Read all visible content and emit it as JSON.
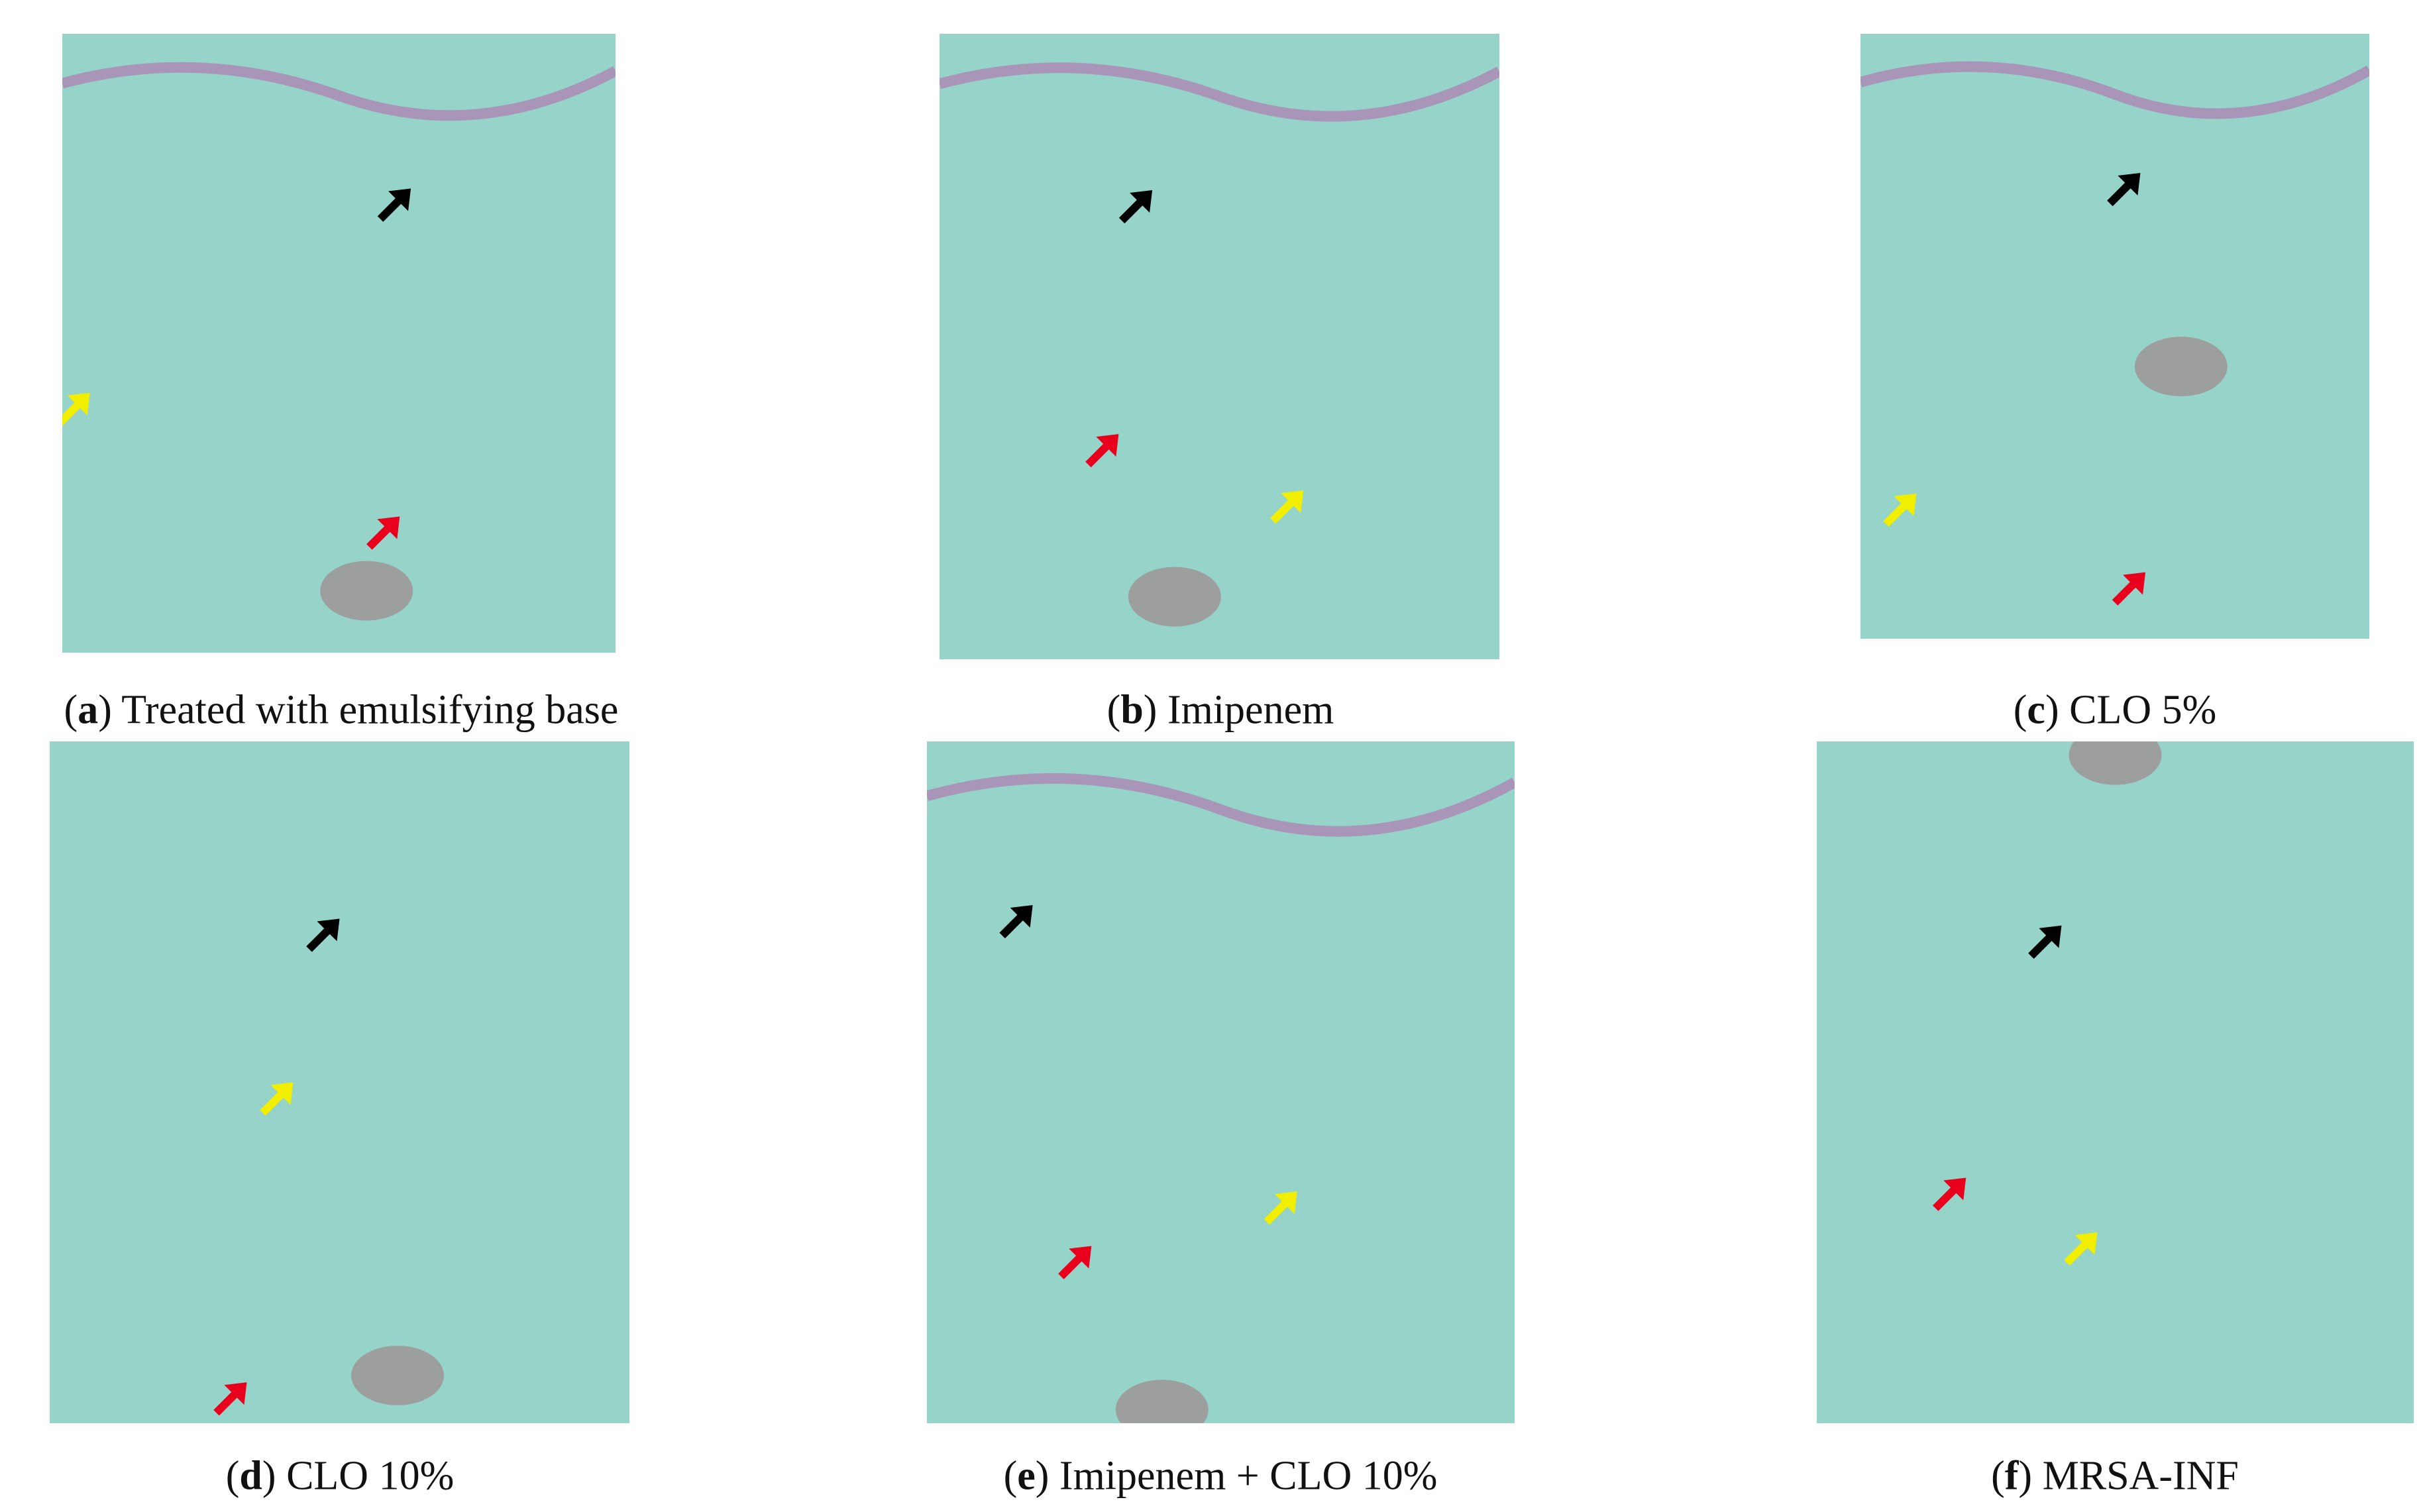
{
  "panels": [
    {
      "label": "(a)",
      "caption": "Treated with emulsifying base"
    },
    {
      "label": "(b)",
      "caption": "Imipenem"
    },
    {
      "label": "(c)",
      "caption": "CLO 5%"
    },
    {
      "label": "(d)",
      "caption": "CLO 10%"
    },
    {
      "label": "(e)",
      "caption": "Imipenem + CLO 10%"
    },
    {
      "label": "(f)",
      "caption": "MRSA-INF"
    }
  ]
}
